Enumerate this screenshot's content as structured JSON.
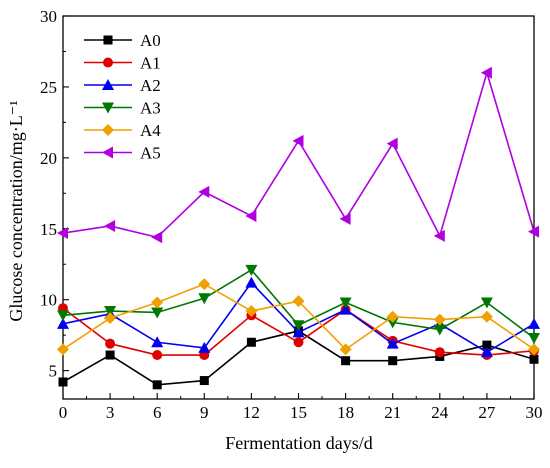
{
  "chart_data": {
    "type": "line",
    "xlabel": "Fermentation days/d",
    "ylabel": "Glucose concentration/mg·L⁻¹",
    "xlim": [
      0,
      30
    ],
    "ylim": [
      3,
      30
    ],
    "x_ticks": [
      "0",
      "3",
      "6",
      "9",
      "12",
      "15",
      "18",
      "21",
      "24",
      "27",
      "30"
    ],
    "y_ticks": [
      "5",
      "10",
      "15",
      "20",
      "25",
      "30"
    ],
    "x": [
      0,
      3,
      6,
      9,
      12,
      15,
      18,
      21,
      24,
      27,
      30
    ],
    "grid": false,
    "legend_position": "top-left",
    "series": [
      {
        "name": "A0",
        "color": "#000000",
        "marker": "square",
        "values": [
          4.2,
          6.1,
          4.0,
          4.3,
          7.0,
          7.8,
          5.7,
          5.7,
          6.0,
          6.8,
          5.8
        ]
      },
      {
        "name": "A1",
        "color": "#e00000",
        "marker": "circle",
        "values": [
          9.4,
          6.9,
          6.1,
          6.1,
          8.9,
          7.0,
          9.3,
          7.1,
          6.3,
          6.1,
          6.4
        ]
      },
      {
        "name": "A2",
        "color": "#0000ee",
        "marker": "triangle-up",
        "values": [
          8.3,
          9.0,
          7.0,
          6.6,
          11.2,
          7.7,
          9.3,
          6.9,
          8.3,
          6.3,
          8.3
        ]
      },
      {
        "name": "A3",
        "color": "#007700",
        "marker": "triangle-down",
        "values": [
          8.9,
          9.2,
          9.1,
          10.1,
          12.1,
          8.2,
          9.8,
          8.4,
          7.9,
          9.8,
          7.3
        ]
      },
      {
        "name": "A4",
        "color": "#f0a000",
        "marker": "diamond",
        "values": [
          6.5,
          8.7,
          9.8,
          11.1,
          9.2,
          9.9,
          6.5,
          8.8,
          8.6,
          8.8,
          6.5
        ]
      },
      {
        "name": "A5",
        "color": "#b000e0",
        "marker": "triangle-left",
        "values": [
          14.7,
          15.2,
          14.4,
          17.6,
          15.9,
          21.2,
          15.7,
          21.0,
          14.5,
          26.0,
          14.8
        ]
      }
    ]
  }
}
